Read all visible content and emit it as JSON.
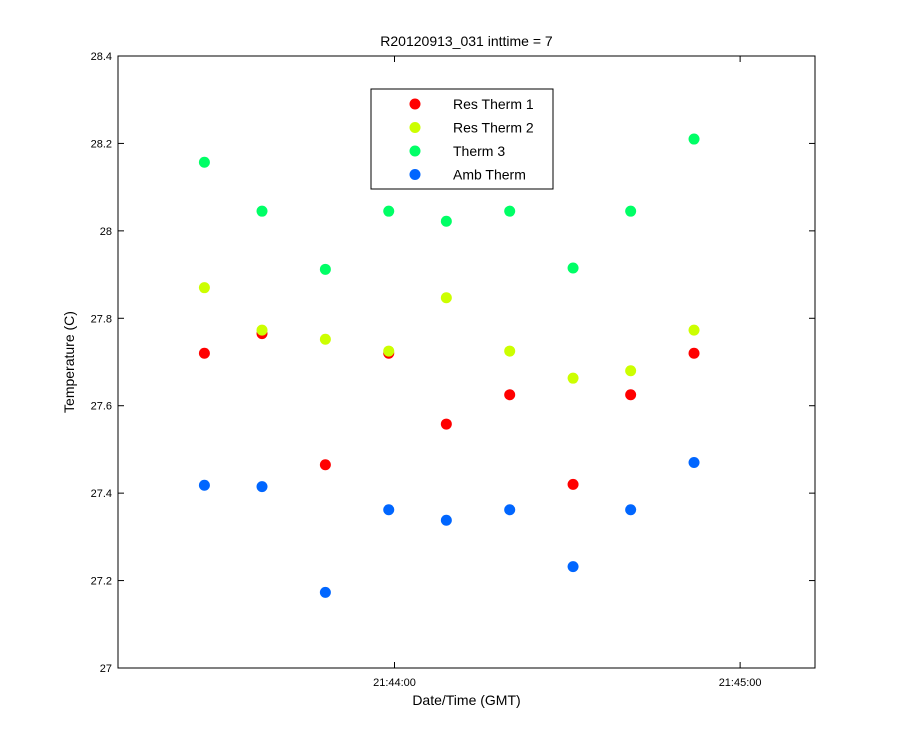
{
  "chart_data": {
    "type": "scatter",
    "title": "R20120913_031 inttime = 7",
    "xlabel": "Date/Time (GMT)",
    "ylabel": "Temperature (C)",
    "ylim": [
      27,
      28.4
    ],
    "xlim": [
      "21:43:12",
      "21:45:13"
    ],
    "x_ticks": [
      "21:44:00",
      "21:45:00"
    ],
    "y_ticks": [
      "27",
      "27.2",
      "27.4",
      "27.6",
      "27.8",
      "28",
      "28.2",
      "28.4"
    ],
    "grid": false,
    "legend_position": "top-center",
    "x": [
      "21:43:27",
      "21:43:37",
      "21:43:48",
      "21:43:59",
      "21:44:09",
      "21:44:20",
      "21:44:31",
      "21:44:41",
      "21:44:52"
    ],
    "series": [
      {
        "name": "Res Therm 1",
        "color": "#ff0000",
        "values": [
          27.72,
          27.765,
          27.465,
          27.72,
          27.558,
          27.625,
          27.42,
          27.625,
          27.72
        ]
      },
      {
        "name": "Res Therm 2",
        "color": "#ccff00",
        "values": [
          27.87,
          27.773,
          27.752,
          27.725,
          27.847,
          27.725,
          27.663,
          27.68,
          27.773
        ]
      },
      {
        "name": "Therm 3",
        "color": "#00ff66",
        "values": [
          28.157,
          28.045,
          27.912,
          28.045,
          28.022,
          28.045,
          27.915,
          28.045,
          28.21
        ]
      },
      {
        "name": "Amb Therm",
        "color": "#0066ff",
        "values": [
          27.418,
          27.415,
          27.173,
          27.362,
          27.338,
          27.362,
          27.232,
          27.362,
          27.47
        ]
      }
    ]
  }
}
